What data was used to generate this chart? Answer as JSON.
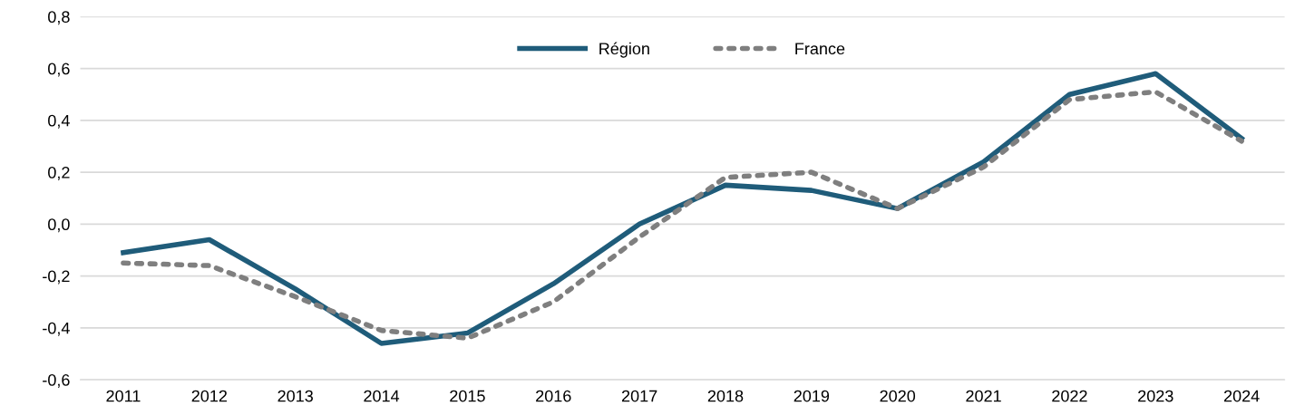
{
  "chart_data": {
    "type": "line",
    "categories": [
      "2011",
      "2012",
      "2013",
      "2014",
      "2015",
      "2016",
      "2017",
      "2018",
      "2019",
      "2020",
      "2021",
      "2022",
      "2023",
      "2024"
    ],
    "series": [
      {
        "name": "Région",
        "color": "#1f5c7a",
        "line_style": "solid",
        "values": [
          -0.11,
          -0.06,
          -0.25,
          -0.46,
          -0.42,
          -0.23,
          0.0,
          0.15,
          0.13,
          0.06,
          0.24,
          0.5,
          0.58,
          0.33
        ]
      },
      {
        "name": "France",
        "color": "#7f7f7f",
        "line_style": "dotted",
        "values": [
          -0.15,
          -0.16,
          -0.28,
          -0.41,
          -0.44,
          -0.3,
          -0.05,
          0.18,
          0.2,
          0.06,
          0.22,
          0.48,
          0.51,
          0.32
        ]
      }
    ],
    "ylim": [
      -0.6,
      0.8
    ],
    "yticks": [
      {
        "value": -0.6,
        "label": "-0,6"
      },
      {
        "value": -0.4,
        "label": "-0,4"
      },
      {
        "value": -0.2,
        "label": "-0,2"
      },
      {
        "value": 0,
        "label": "0,0"
      },
      {
        "value": 0.2,
        "label": "0,2"
      },
      {
        "value": 0.4,
        "label": "0,4"
      },
      {
        "value": 0.6,
        "label": "0,6"
      },
      {
        "value": 0.8,
        "label": "0,8"
      }
    ],
    "grid": "y",
    "legend": "top",
    "marker": "none"
  }
}
